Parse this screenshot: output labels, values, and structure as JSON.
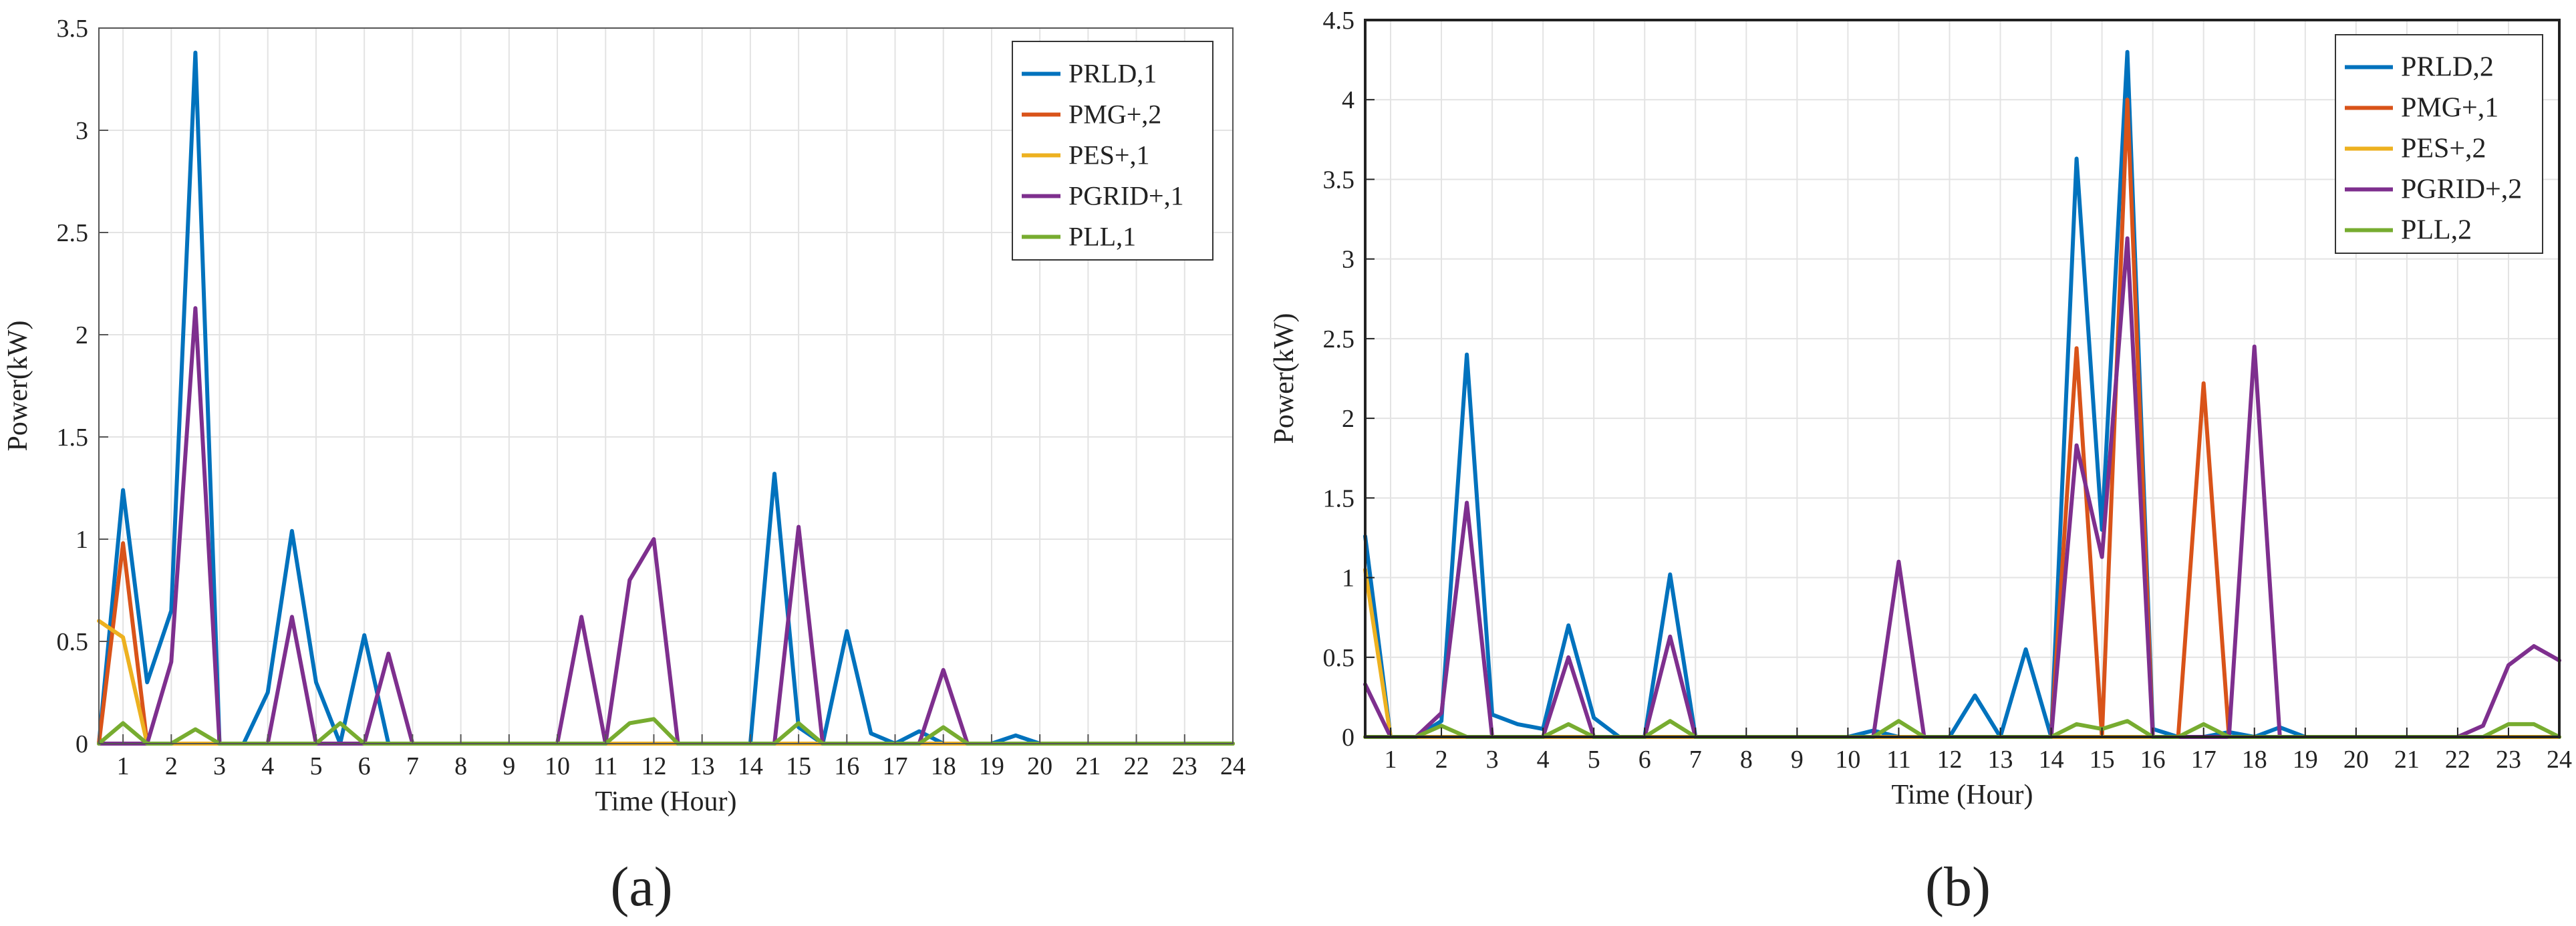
{
  "chart_data": [
    {
      "panel_label": "(a)",
      "type": "line",
      "xlabel": "Time (Hour)",
      "ylabel": "Power(kW)",
      "xlim": [
        0.5,
        24
      ],
      "ylim": [
        0,
        3.5
      ],
      "x_ticks": [
        "1",
        "2",
        "3",
        "4",
        "5",
        "6",
        "7",
        "8",
        "9",
        "10",
        "11",
        "12",
        "13",
        "14",
        "15",
        "16",
        "17",
        "18",
        "19",
        "20",
        "21",
        "22",
        "23",
        "24"
      ],
      "y_ticks": [
        "0",
        "0.5",
        "1",
        "1.5",
        "2",
        "2.5",
        "3",
        "3.5"
      ],
      "grid": true,
      "legend_position": "top-right",
      "series": [
        {
          "name": "PRLD,1",
          "color": "#0072bd",
          "x": [
            0.5,
            1,
            1.5,
            2,
            2.5,
            3,
            3.5,
            4,
            4.5,
            5,
            5.5,
            6,
            6.5,
            7,
            7.5,
            8,
            8.5,
            9,
            9.5,
            10,
            10.5,
            11,
            11.5,
            12,
            12.5,
            13,
            13.5,
            14,
            14.5,
            15,
            15.5,
            16,
            16.5,
            17,
            17.5,
            18,
            18.5,
            19,
            19.5,
            20,
            20.5,
            21,
            21.5,
            22,
            22.5,
            23,
            23.5,
            24
          ],
          "values": [
            0,
            1.24,
            0.3,
            0.65,
            3.38,
            0,
            0,
            0.25,
            1.04,
            0.3,
            0,
            0.53,
            0,
            0,
            0,
            0,
            0,
            0,
            0,
            0,
            0,
            0,
            0,
            0,
            0,
            0,
            0,
            0,
            1.32,
            0.08,
            0,
            0.55,
            0.05,
            0,
            0.06,
            0,
            0,
            0,
            0.04,
            0,
            0,
            0,
            0,
            0,
            0,
            0,
            0,
            0
          ]
        },
        {
          "name": "PMG+,2",
          "color": "#d95319",
          "x": [
            0.5,
            1,
            1.5,
            2,
            24
          ],
          "values": [
            0,
            0.98,
            0,
            0,
            0
          ]
        },
        {
          "name": "PES+,1",
          "color": "#edb120",
          "x": [
            0.5,
            1,
            1.5,
            2,
            24
          ],
          "values": [
            0.6,
            0.52,
            0,
            0,
            0
          ]
        },
        {
          "name": "PGRID+,1",
          "color": "#7e2f8e",
          "x": [
            0.5,
            1,
            1.5,
            2,
            2.5,
            3,
            3.5,
            4,
            4.5,
            5,
            5.5,
            6,
            6.5,
            7,
            7.5,
            8,
            8.5,
            9,
            9.5,
            10,
            10.5,
            11,
            11.5,
            12,
            12.5,
            13,
            13.5,
            14,
            14.5,
            15,
            15.5,
            16,
            16.5,
            17,
            17.5,
            18,
            18.5,
            19,
            19.5,
            20,
            20.5,
            21,
            21.5,
            22,
            22.5,
            23,
            23.5,
            24
          ],
          "values": [
            0,
            0,
            0,
            0.4,
            2.13,
            0,
            0,
            0,
            0.62,
            0,
            0,
            0,
            0.44,
            0,
            0,
            0,
            0,
            0,
            0,
            0,
            0.62,
            0,
            0.8,
            1.0,
            0,
            0,
            0,
            0,
            0,
            1.06,
            0,
            0,
            0,
            0,
            0,
            0.36,
            0,
            0,
            0,
            0,
            0,
            0,
            0,
            0,
            0,
            0,
            0,
            0
          ]
        },
        {
          "name": "PLL,1",
          "color": "#77ac30",
          "x": [
            0.5,
            1,
            1.5,
            2,
            2.5,
            3,
            3.5,
            4,
            4.5,
            5,
            5.5,
            6,
            6.5,
            7,
            7.5,
            8,
            8.5,
            9,
            9.5,
            10,
            10.5,
            11,
            11.5,
            12,
            12.5,
            13,
            13.5,
            14,
            14.5,
            15,
            15.5,
            16,
            16.5,
            17,
            17.5,
            18,
            18.5,
            19,
            19.5,
            20,
            20.5,
            21,
            21.5,
            22,
            22.5,
            23,
            23.5,
            24
          ],
          "values": [
            0,
            0.1,
            0,
            0,
            0.07,
            0,
            0,
            0,
            0,
            0,
            0.1,
            0,
            0,
            0,
            0,
            0,
            0,
            0,
            0,
            0,
            0,
            0,
            0.1,
            0.12,
            0,
            0,
            0,
            0,
            0,
            0.1,
            0,
            0,
            0,
            0,
            0,
            0.08,
            0,
            0,
            0,
            0,
            0,
            0,
            0,
            0,
            0,
            0,
            0,
            0
          ]
        }
      ]
    },
    {
      "panel_label": "(b)",
      "type": "line",
      "xlabel": "Time (Hour)",
      "ylabel": "Power(kW)",
      "xlim": [
        0.5,
        24
      ],
      "ylim": [
        0,
        4.5
      ],
      "x_ticks": [
        "1",
        "2",
        "3",
        "4",
        "5",
        "6",
        "7",
        "8",
        "9",
        "10",
        "11",
        "12",
        "13",
        "14",
        "15",
        "16",
        "17",
        "18",
        "19",
        "20",
        "21",
        "22",
        "23",
        "24"
      ],
      "y_ticks": [
        "0",
        "0.5",
        "1",
        "1.5",
        "2",
        "2.5",
        "3",
        "3.5",
        "4",
        "4.5"
      ],
      "grid": true,
      "legend_position": "top-right",
      "series": [
        {
          "name": "PRLD,2",
          "color": "#0072bd",
          "x": [
            0.5,
            1,
            1.5,
            2,
            2.5,
            3,
            3.5,
            4,
            4.5,
            5,
            5.5,
            6,
            6.5,
            7,
            7.5,
            8,
            8.5,
            9,
            9.5,
            10,
            10.5,
            11,
            11.5,
            12,
            12.5,
            13,
            13.5,
            14,
            14.5,
            15,
            15.5,
            16,
            16.5,
            17,
            17.5,
            18,
            18.5,
            19,
            19.5,
            20,
            20.5,
            21,
            21.5,
            22,
            22.5,
            23,
            23.5,
            24
          ],
          "values": [
            1.26,
            0,
            0,
            0.1,
            2.4,
            0.14,
            0.08,
            0.05,
            0.7,
            0.12,
            0,
            0,
            1.02,
            0,
            0,
            0,
            0,
            0,
            0,
            0,
            0.04,
            0,
            0,
            0,
            0.26,
            0,
            0.55,
            0,
            3.63,
            1.3,
            4.3,
            0.05,
            0,
            0,
            0.03,
            0,
            0.06,
            0,
            0,
            0,
            0,
            0,
            0,
            0,
            0,
            0,
            0,
            0
          ]
        },
        {
          "name": "PMG+,1",
          "color": "#d95319",
          "x": [
            0.5,
            1,
            1.5,
            2,
            2.5,
            3,
            3.5,
            4,
            4.5,
            5,
            5.5,
            6,
            6.5,
            7,
            7.5,
            8,
            8.5,
            9,
            9.5,
            10,
            10.5,
            11,
            11.5,
            12,
            12.5,
            13,
            13.5,
            14,
            14.5,
            15,
            15.5,
            16,
            16.5,
            17,
            17.5,
            18,
            18.5,
            19,
            19.5,
            20,
            20.5,
            21,
            21.5,
            22,
            22.5,
            23,
            23.5,
            24
          ],
          "values": [
            0,
            0,
            0,
            0,
            0,
            0,
            0,
            0,
            0,
            0,
            0,
            0,
            0,
            0,
            0,
            0,
            0,
            0,
            0,
            0,
            0,
            0,
            0,
            0,
            0,
            0,
            0,
            0,
            2.44,
            0,
            4.0,
            0,
            0,
            2.22,
            0,
            0,
            0,
            0,
            0,
            0,
            0,
            0,
            0,
            0,
            0,
            0,
            0,
            0
          ]
        },
        {
          "name": "PES+,2",
          "color": "#edb120",
          "x": [
            0.5,
            1,
            1.5,
            24
          ],
          "values": [
            1.05,
            0,
            0,
            0
          ]
        },
        {
          "name": "PGRID+,2",
          "color": "#7e2f8e",
          "x": [
            0.5,
            1,
            1.5,
            2,
            2.5,
            3,
            3.5,
            4,
            4.5,
            5,
            5.5,
            6,
            6.5,
            7,
            7.5,
            8,
            8.5,
            9,
            9.5,
            10,
            10.5,
            11,
            11.5,
            12,
            12.5,
            13,
            13.5,
            14,
            14.5,
            15,
            15.5,
            16,
            16.5,
            17,
            17.5,
            18,
            18.5,
            19,
            19.5,
            20,
            20.5,
            21,
            21.5,
            22,
            22.5,
            23,
            23.5,
            24
          ],
          "values": [
            0.33,
            0,
            0,
            0.15,
            1.47,
            0,
            0,
            0,
            0.5,
            0,
            0,
            0,
            0.63,
            0,
            0,
            0,
            0,
            0,
            0,
            0,
            0,
            1.1,
            0,
            0,
            0,
            0,
            0,
            0,
            1.83,
            1.13,
            3.13,
            0,
            0,
            0,
            0,
            2.45,
            0,
            0,
            0,
            0,
            0,
            0,
            0,
            0,
            0.07,
            0.45,
            0.57,
            0.48
          ]
        },
        {
          "name": "PLL,2",
          "color": "#77ac30",
          "x": [
            0.5,
            1,
            1.5,
            2,
            2.5,
            3,
            3.5,
            4,
            4.5,
            5,
            5.5,
            6,
            6.5,
            7,
            7.5,
            8,
            8.5,
            9,
            9.5,
            10,
            10.5,
            11,
            11.5,
            12,
            12.5,
            13,
            13.5,
            14,
            14.5,
            15,
            15.5,
            16,
            16.5,
            17,
            17.5,
            18,
            18.5,
            19,
            19.5,
            20,
            20.5,
            21,
            21.5,
            22,
            22.5,
            23,
            23.5,
            24
          ],
          "values": [
            0,
            0,
            0,
            0.07,
            0,
            0,
            0,
            0,
            0.08,
            0,
            0,
            0,
            0.1,
            0,
            0,
            0,
            0,
            0,
            0,
            0,
            0,
            0.1,
            0,
            0,
            0,
            0,
            0,
            0,
            0.08,
            0.05,
            0.1,
            0,
            0,
            0.08,
            0,
            0,
            0,
            0,
            0,
            0,
            0,
            0,
            0,
            0,
            0,
            0.08,
            0.08,
            0
          ]
        }
      ]
    }
  ]
}
